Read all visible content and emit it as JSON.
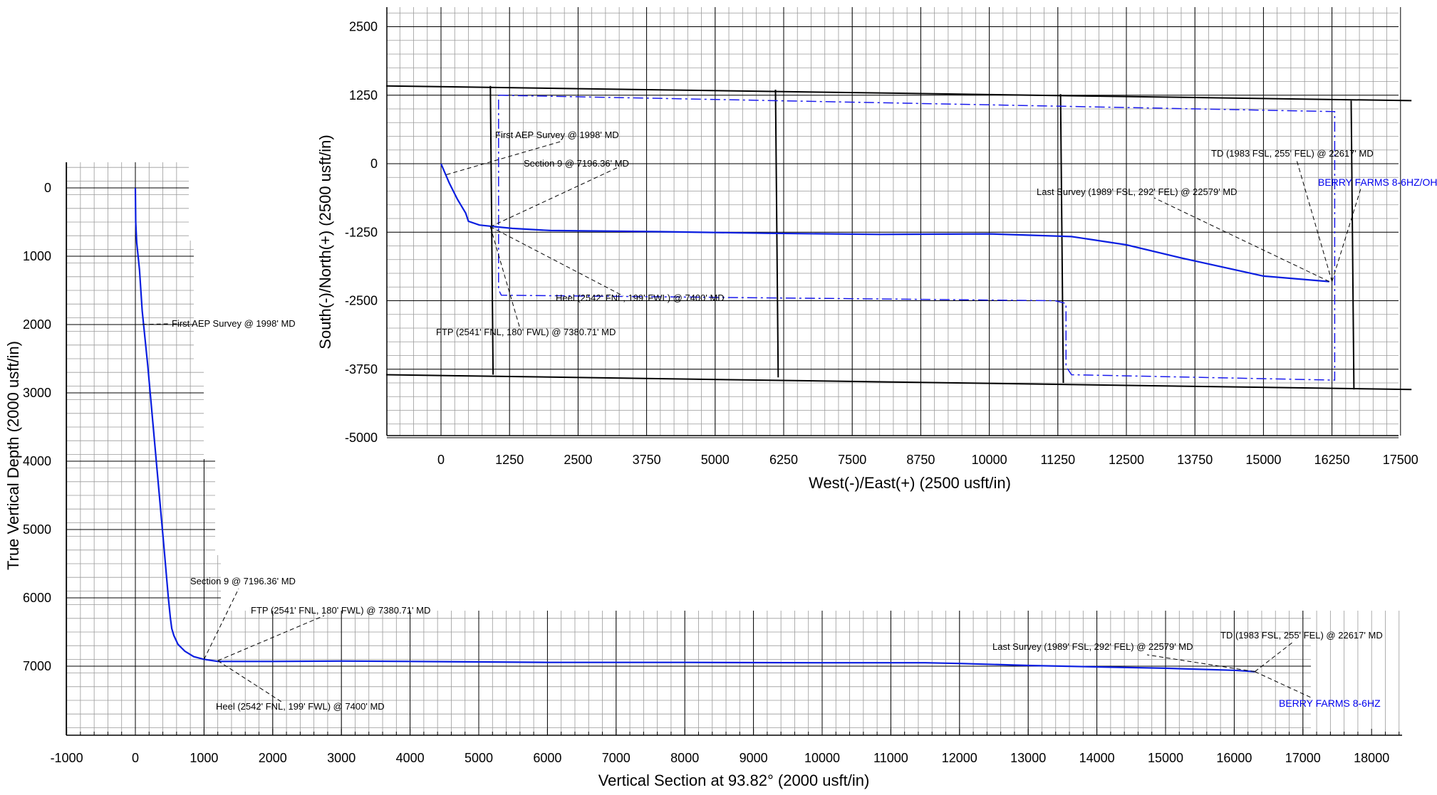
{
  "chart_data": [
    {
      "type": "line",
      "title": "",
      "xlabel": "West(-)/East(+) (2500 usft/in)",
      "ylabel": "South(-)/North(+) (2500 usft/in)",
      "xlim": [
        -1000,
        18500
      ],
      "ylim": [
        -5000,
        2900
      ],
      "grid": true,
      "x_ticks": [
        "0",
        "1250",
        "2500",
        "3750",
        "5000",
        "6250",
        "7500",
        "8750",
        "10000",
        "11250",
        "12500",
        "13750",
        "15000",
        "16250",
        "17500"
      ],
      "y_ticks": [
        "2500",
        "1250",
        "0",
        "-1250",
        "-2500",
        "-3750",
        "-5000"
      ],
      "series": [
        {
          "name": "BERRY FARMS 8-6HZ/OH",
          "x": [
            0,
            150,
            300,
            450,
            500,
            700,
            900,
            1000,
            1300,
            2000,
            4000,
            6000,
            8000,
            10000,
            11500,
            12500,
            13500,
            15000,
            16200
          ],
          "y": [
            0,
            -350,
            -650,
            -900,
            -1050,
            -1120,
            -1140,
            -1150,
            -1180,
            -1220,
            -1240,
            -1270,
            -1290,
            -1280,
            -1330,
            -1480,
            -1720,
            -2050,
            -2150
          ]
        }
      ],
      "section_lines": [
        {
          "x": [
            -1000,
            17700
          ],
          "y": [
            1420,
            1150
          ]
        },
        {
          "x": [
            -1000,
            17700
          ],
          "y": [
            -3850,
            -4120
          ]
        },
        {
          "x": [
            900,
            950
          ],
          "y": [
            1420,
            -3850
          ]
        },
        {
          "x": [
            6100,
            6150
          ],
          "y": [
            1350,
            -3900
          ]
        },
        {
          "x": [
            11300,
            11350
          ],
          "y": [
            1270,
            -4000
          ]
        },
        {
          "x": [
            16600,
            16650
          ],
          "y": [
            1150,
            -4120
          ]
        }
      ],
      "lease_line": {
        "x": [
          1050,
          16300,
          16300,
          11500,
          11400,
          11400,
          11200,
          1100,
          1050,
          1050
        ],
        "y": [
          1250,
          950,
          -3950,
          -3850,
          -3700,
          -2550,
          -2500,
          -2400,
          -2300,
          1250
        ]
      },
      "annotations": [
        {
          "text": "First AEP Survey @ 1998' MD",
          "x": 100,
          "y": -200
        },
        {
          "text": "Section 9 @ 7196.36' MD",
          "x": 900,
          "y": -1150
        },
        {
          "text": "Heel (2542' FNL, 199' FWL) @ 7400' MD",
          "x": 900,
          "y": -1150
        },
        {
          "text": "FTP (2541' FNL, 180' FWL) @ 7380.71' MD",
          "x": 900,
          "y": -1150
        },
        {
          "text": "Last Survey (1989' FSL, 292' FEL) @ 22579' MD",
          "x": 16200,
          "y": -2150
        },
        {
          "text": "TD (1983 FSL, 255' FEL) @ 22617' MD",
          "x": 16250,
          "y": -2150
        },
        {
          "text": "BERRY FARMS 8-6HZ/OH",
          "x": 16250,
          "y": -2150
        }
      ]
    },
    {
      "type": "line",
      "title": "",
      "xlabel": "Vertical Section at 93.82° (2000 usft/in)",
      "ylabel": "True Vertical Depth (2000 usft/in)",
      "xlim": [
        -1000,
        18500
      ],
      "ylim": [
        8000,
        -380
      ],
      "grid": true,
      "x_ticks": [
        "-1000",
        "0",
        "1000",
        "2000",
        "3000",
        "4000",
        "5000",
        "6000",
        "7000",
        "8000",
        "9000",
        "10000",
        "11000",
        "12000",
        "13000",
        "14000",
        "15000",
        "16000",
        "17000",
        "18000"
      ],
      "y_ticks": [
        "0",
        "1000",
        "2000",
        "3000",
        "4000",
        "5000",
        "6000",
        "7000"
      ],
      "series": [
        {
          "name": "BERRY FARMS 8-6HZ",
          "x": [
            0,
            5,
            20,
            60,
            100,
            180,
            260,
            340,
            420,
            480,
            510,
            530,
            560,
            620,
            720,
            850,
            1000,
            1200,
            1500,
            2000,
            3000,
            4000,
            6000,
            8000,
            10000,
            11500,
            12000,
            13000,
            14000,
            15000,
            16000,
            16300
          ],
          "y": [
            0,
            500,
            800,
            1200,
            1800,
            2600,
            3500,
            4400,
            5300,
            6000,
            6300,
            6450,
            6550,
            6680,
            6780,
            6860,
            6900,
            6930,
            6930,
            6930,
            6925,
            6930,
            6945,
            6945,
            6950,
            6950,
            6960,
            6990,
            7010,
            7030,
            7060,
            7080
          ]
        }
      ],
      "annotations": [
        {
          "text": "First AEP Survey @ 1998' MD",
          "x": 100,
          "y": 1998
        },
        {
          "text": "Section 9 @ 7196.36' MD",
          "x": 1000,
          "y": 6900
        },
        {
          "text": "FTP (2541' FNL, 180' FWL) @ 7380.71' MD",
          "x": 1200,
          "y": 6920
        },
        {
          "text": "Heel (2542' FNL, 199' FWL) @ 7400' MD",
          "x": 1200,
          "y": 6920
        },
        {
          "text": "Last Survey (1989' FSL, 292' FEL) @ 22579' MD",
          "x": 16300,
          "y": 7080
        },
        {
          "text": "TD (1983 FSL, 255' FEL) @ 22617' MD",
          "x": 16300,
          "y": 7080
        },
        {
          "text": "BERRY FARMS 8-6HZ",
          "x": 16300,
          "y": 7080
        }
      ]
    }
  ]
}
